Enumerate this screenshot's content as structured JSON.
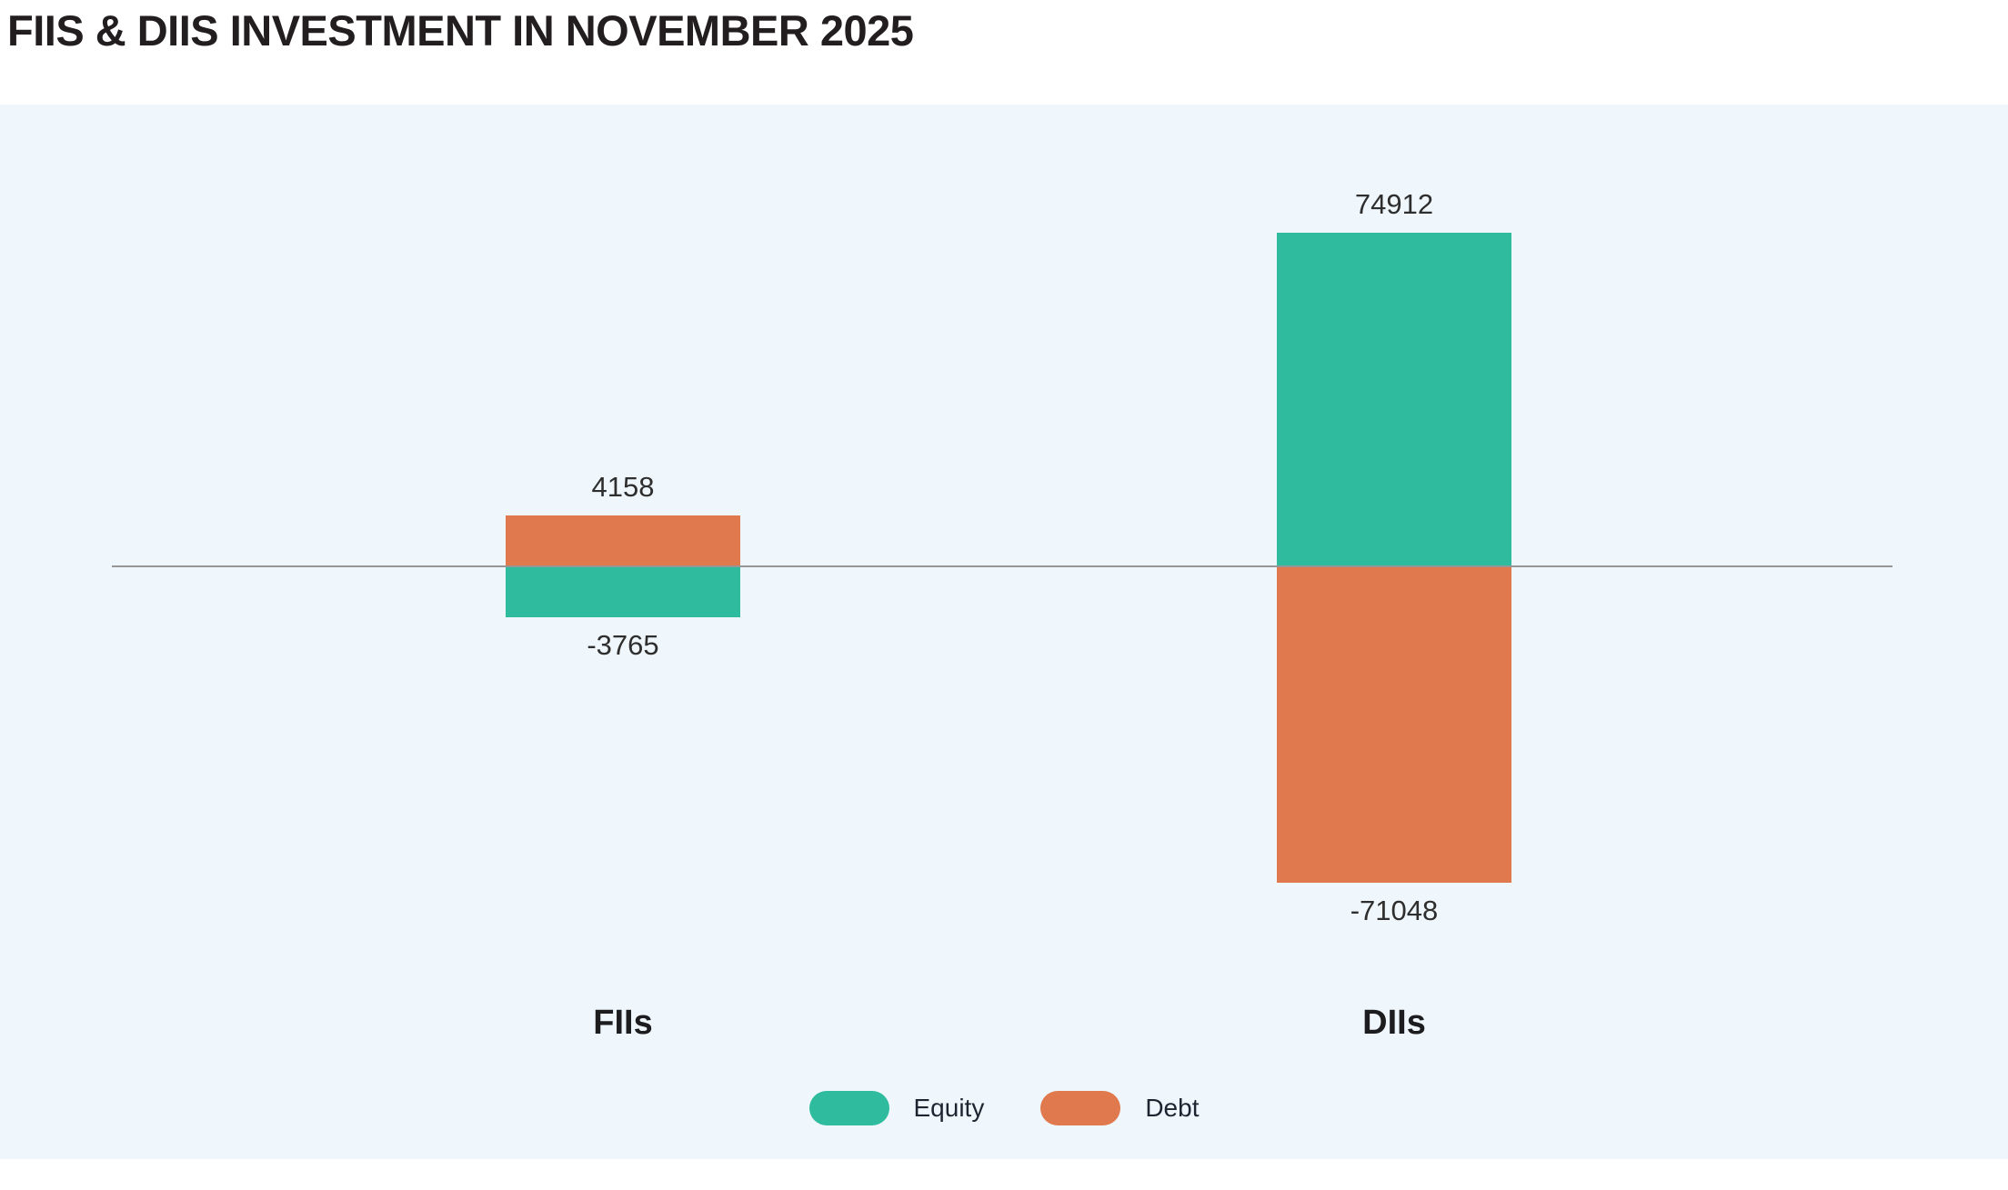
{
  "page": {
    "background": "#ffffff",
    "panel_background": "#f0f7fc"
  },
  "chart_data": {
    "type": "bar",
    "title": "FIIS & DIIS INVESTMENT IN NOVEMBER 2025",
    "categories": [
      "FIIs",
      "DIIs"
    ],
    "series": [
      {
        "name": "Equity",
        "color": "#2fbc9e",
        "values": [
          -3765,
          74912
        ]
      },
      {
        "name": "Debt",
        "color": "#e07a4e",
        "values": [
          4158,
          -71048
        ]
      }
    ],
    "baseline": 0,
    "ylim": [
      -80000,
      80000
    ],
    "grid": false,
    "axis_ticks": false,
    "legend_position": "bottom",
    "value_labels_shown": true,
    "axis_line_color": "#969696",
    "value_label_color": "#2e2e2e"
  }
}
